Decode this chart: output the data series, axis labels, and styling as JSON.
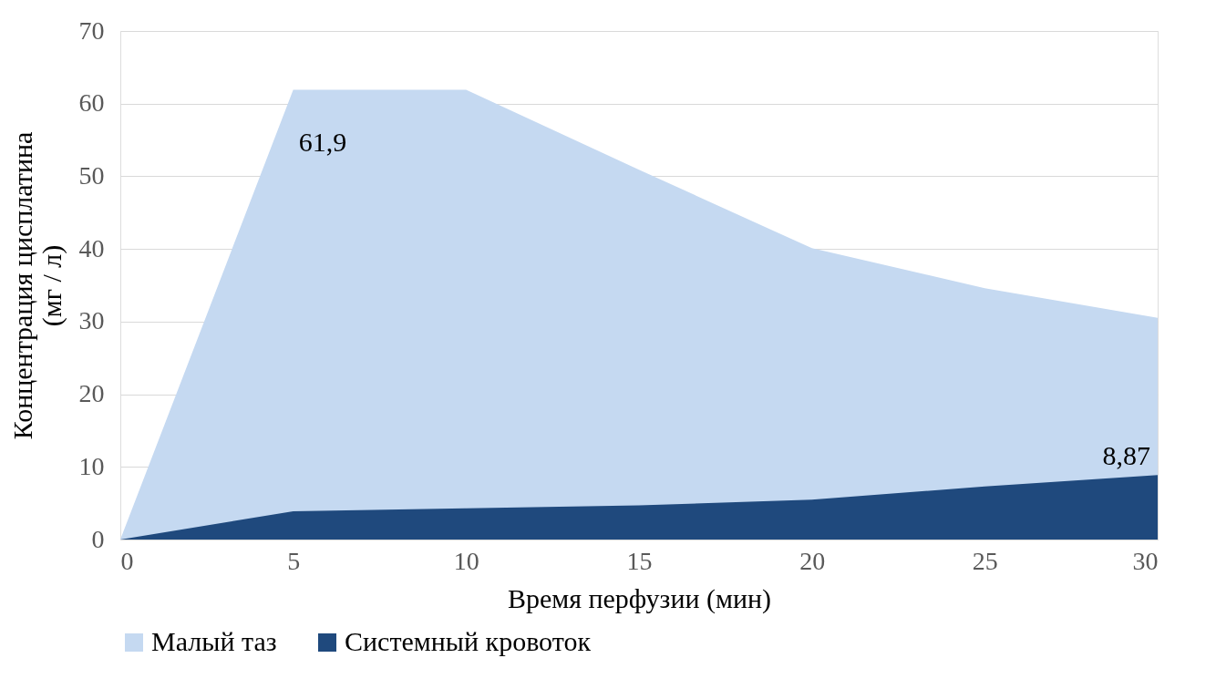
{
  "chart_data": {
    "type": "area",
    "xlabel": "Время перфузии (мин)",
    "ylabel": "Концентрация цисплатина (мг / л)",
    "x": [
      0,
      5,
      10,
      15,
      20,
      25,
      30
    ],
    "series": [
      {
        "name": "Малый таз",
        "color": "#c5d9f1",
        "values": [
          0,
          61.9,
          61.9,
          50.9,
          40.1,
          34.6,
          30.5
        ],
        "value_labels": [
          null,
          "61,9",
          null,
          null,
          null,
          null,
          null
        ]
      },
      {
        "name": "Системный кровоток",
        "color": "#1f497d",
        "values": [
          0,
          3.9,
          4.3,
          4.7,
          5.5,
          7.3,
          8.87
        ],
        "value_labels": [
          null,
          null,
          null,
          null,
          null,
          null,
          "8,87"
        ]
      }
    ],
    "xlim": [
      0,
      30
    ],
    "xticks": [
      0,
      5,
      10,
      15,
      20,
      25,
      30
    ],
    "ylim": [
      0,
      70
    ],
    "yticks": [
      0,
      10,
      20,
      30,
      40,
      50,
      60,
      70
    ],
    "grid": "y",
    "legend": "bottom"
  }
}
